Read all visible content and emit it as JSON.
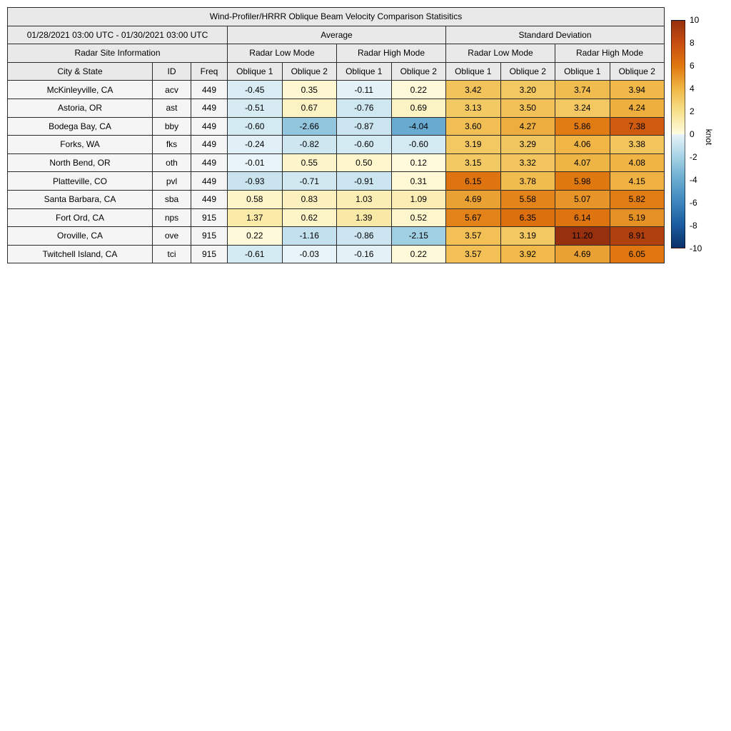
{
  "chart_data": {
    "type": "heatmap",
    "title": "Wind-Profiler/HRRR Oblique Beam Velocity Comparison Statisitics",
    "date_range": "01/28/2021 03:00 UTC - 01/30/2021 03:00 UTC",
    "group_headers": [
      "Average",
      "Standard Deviation"
    ],
    "site_info_header": "Radar Site Information",
    "mode_headers": [
      "Radar Low Mode",
      "Radar High Mode",
      "Radar Low Mode",
      "Radar High Mode"
    ],
    "col_headers": [
      "City & State",
      "ID",
      "Freq",
      "Oblique 1",
      "Oblique 2",
      "Oblique 1",
      "Oblique 2",
      "Oblique 1",
      "Oblique 2",
      "Oblique 1",
      "Oblique 2"
    ],
    "rows": [
      {
        "city": "McKinleyville, CA",
        "id": "acv",
        "freq": "449",
        "values": [
          "-0.45",
          "0.35",
          "-0.11",
          "0.22",
          "3.42",
          "3.20",
          "3.74",
          "3.94"
        ]
      },
      {
        "city": "Astoria, OR",
        "id": "ast",
        "freq": "449",
        "values": [
          "-0.51",
          "0.67",
          "-0.76",
          "0.69",
          "3.13",
          "3.50",
          "3.24",
          "4.24"
        ]
      },
      {
        "city": "Bodega Bay, CA",
        "id": "bby",
        "freq": "449",
        "values": [
          "-0.60",
          "-2.66",
          "-0.87",
          "-4.04",
          "3.60",
          "4.27",
          "5.86",
          "7.38"
        ]
      },
      {
        "city": "Forks, WA",
        "id": "fks",
        "freq": "449",
        "values": [
          "-0.24",
          "-0.82",
          "-0.60",
          "-0.60",
          "3.19",
          "3.29",
          "4.06",
          "3.38"
        ]
      },
      {
        "city": "North Bend, OR",
        "id": "oth",
        "freq": "449",
        "values": [
          "-0.01",
          "0.55",
          "0.50",
          "0.12",
          "3.15",
          "3.32",
          "4.07",
          "4.08"
        ]
      },
      {
        "city": "Platteville, CO",
        "id": "pvl",
        "freq": "449",
        "values": [
          "-0.93",
          "-0.71",
          "-0.91",
          "0.31",
          "6.15",
          "3.78",
          "5.98",
          "4.15"
        ]
      },
      {
        "city": "Santa Barbara, CA",
        "id": "sba",
        "freq": "449",
        "values": [
          "0.58",
          "0.83",
          "1.03",
          "1.09",
          "4.69",
          "5.58",
          "5.07",
          "5.82"
        ]
      },
      {
        "city": "Fort Ord, CA",
        "id": "nps",
        "freq": "915",
        "values": [
          "1.37",
          "0.62",
          "1.39",
          "0.52",
          "5.67",
          "6.35",
          "6.14",
          "5.19"
        ]
      },
      {
        "city": "Oroville, CA",
        "id": "ove",
        "freq": "915",
        "values": [
          "0.22",
          "-1.16",
          "-0.86",
          "-2.15",
          "3.57",
          "3.19",
          "11.20",
          "8.91"
        ]
      },
      {
        "city": "Twitchell Island, CA",
        "id": "tci",
        "freq": "915",
        "values": [
          "-0.61",
          "-0.03",
          "-0.16",
          "0.22",
          "3.57",
          "3.92",
          "4.69",
          "6.05"
        ]
      }
    ],
    "colorbar": {
      "label": "knot",
      "ticks": [
        10,
        8,
        6,
        4,
        2,
        0,
        -2,
        -4,
        -6,
        -8,
        -10
      ],
      "vmin": -10,
      "vmax": 10,
      "pos_stops": [
        [
          0,
          "#fffce1"
        ],
        [
          2,
          "#f7e18c"
        ],
        [
          4,
          "#f0b746"
        ],
        [
          6,
          "#e0770f"
        ],
        [
          8,
          "#c84e10"
        ],
        [
          10,
          "#96300e"
        ]
      ],
      "neg_stops": [
        [
          0,
          "#e8f4f8"
        ],
        [
          2,
          "#a6d2e5"
        ],
        [
          4,
          "#69abd0"
        ],
        [
          6,
          "#3c86bd"
        ],
        [
          8,
          "#1b5ba0"
        ],
        [
          10,
          "#0a3168"
        ]
      ]
    }
  }
}
